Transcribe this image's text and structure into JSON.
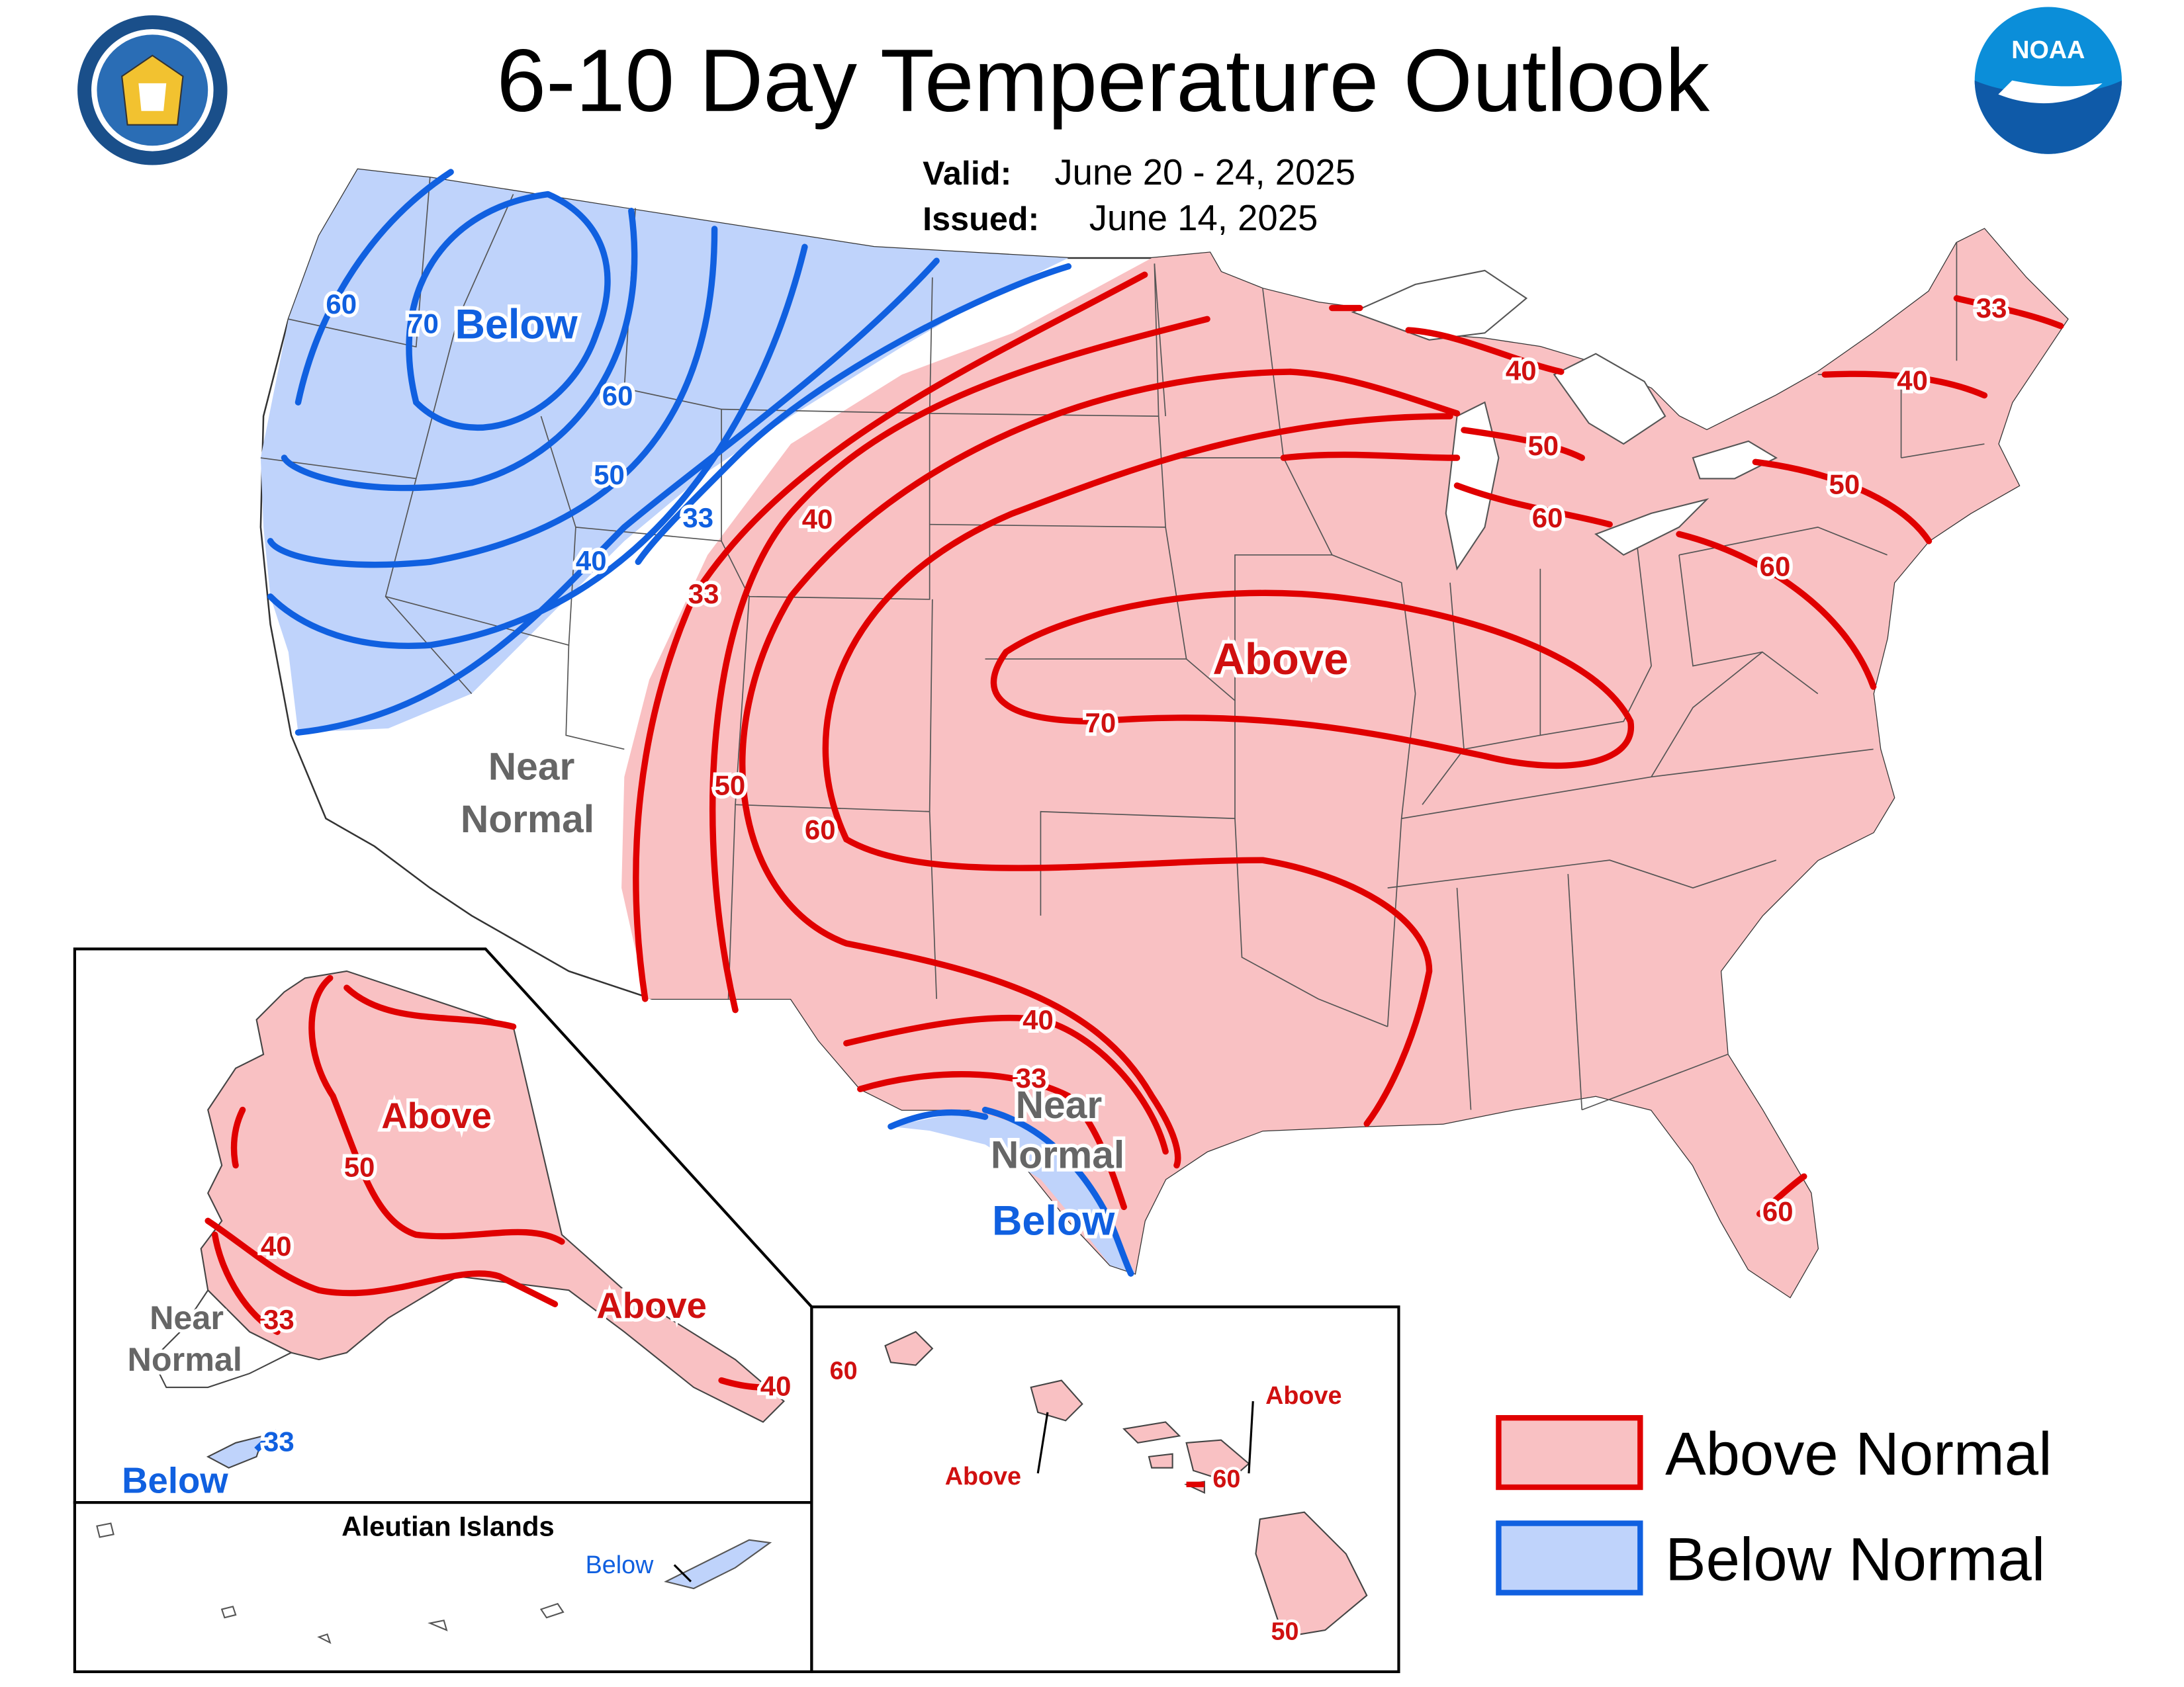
{
  "header": {
    "title": "6-10 Day Temperature Outlook",
    "valid_label": "Valid:",
    "valid_dates": "June 20 - 24, 2025",
    "issued_label": "Issued:",
    "issued_date": "June 14, 2025"
  },
  "logos": {
    "commerce_seal": "seal-icon",
    "noaa_text": "NOAA"
  },
  "colors": {
    "above_fill": "#f9c1c3",
    "above_line": "#e00000",
    "below_fill": "#bfd3fb",
    "below_line": "#1060e0",
    "near_text": "#666666"
  },
  "conus": {
    "region_labels": {
      "below_nw": "Below",
      "above_central": "Above",
      "near_normal_line1": "Near",
      "near_normal_line2": "Normal",
      "near_tx_line1": "Near",
      "near_tx_line2": "Normal",
      "below_tx": "Below"
    },
    "contour_labels": {
      "below": [
        "60",
        "70",
        "60",
        "50",
        "40",
        "33"
      ],
      "above": [
        "33",
        "40",
        "50",
        "60",
        "70",
        "40",
        "33",
        "40",
        "40",
        "33",
        "50",
        "60",
        "50",
        "60",
        "60"
      ]
    }
  },
  "alaska": {
    "above": "Above",
    "above_se": "Above",
    "near_line1": "Near",
    "near_line2": "Normal",
    "below": "Below",
    "contours": [
      "50",
      "40",
      "33",
      "40",
      "33"
    ]
  },
  "aleutians": {
    "title": "Aleutian Islands",
    "below": "Below"
  },
  "hawaii": {
    "contour_60_left": "60",
    "above_left": "Above",
    "above_right": "Above",
    "contour_60_maui": "60",
    "contour_50": "50"
  },
  "legend": {
    "above": "Above Normal",
    "below": "Below Normal"
  }
}
